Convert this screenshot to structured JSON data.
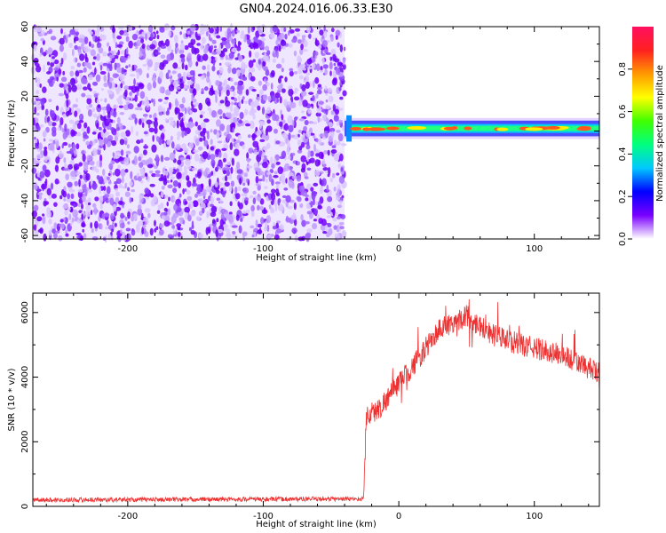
{
  "title": "GN04.2024.016.06.33.E30",
  "chart_data": [
    {
      "type": "heatmap",
      "xlabel": "Height of straight line (km)",
      "ylabel": "Frequency (Hz)",
      "xlim": [
        -270,
        148
      ],
      "ylim": [
        -62,
        60
      ],
      "xticks": [
        -200,
        -100,
        0,
        100
      ],
      "yticks": [
        -60,
        -40,
        -20,
        0,
        20,
        40,
        60
      ],
      "noise_region_x": [
        -270,
        -40
      ],
      "signal_region_x": [
        -40,
        148
      ],
      "signal_band_hz": [
        -3,
        6
      ],
      "colorbar": {
        "label": "Normalized spectral amplitude",
        "range": [
          0,
          1
        ],
        "ticks": [
          0.0,
          0.2,
          0.4,
          0.6,
          0.8
        ],
        "colors": [
          "#ffffff",
          "#7a00ff",
          "#0000ff",
          "#00c8ff",
          "#00ff80",
          "#40ff00",
          "#ffff00",
          "#ff9900",
          "#ff2020",
          "#ff1060"
        ]
      },
      "grid": false
    },
    {
      "type": "line",
      "xlabel": "Height of straight line (km)",
      "ylabel": "SNR (10 * v/v)",
      "xlim": [
        -270,
        148
      ],
      "ylim": [
        0,
        6600
      ],
      "xticks": [
        -200,
        -100,
        0,
        100
      ],
      "yticks": [
        0,
        2000,
        4000,
        6000
      ],
      "color": "#ee3030",
      "grid": false,
      "key_points": [
        {
          "x": -270,
          "y": 200
        },
        {
          "x": -26,
          "y": 230
        },
        {
          "x": -24,
          "y": 2800
        },
        {
          "x": -15,
          "y": 3000
        },
        {
          "x": 0,
          "y": 3800
        },
        {
          "x": 15,
          "y": 4600
        },
        {
          "x": 30,
          "y": 5500
        },
        {
          "x": 50,
          "y": 5900
        },
        {
          "x": 70,
          "y": 5300
        },
        {
          "x": 90,
          "y": 5000
        },
        {
          "x": 120,
          "y": 4700
        },
        {
          "x": 148,
          "y": 4100
        }
      ]
    }
  ]
}
